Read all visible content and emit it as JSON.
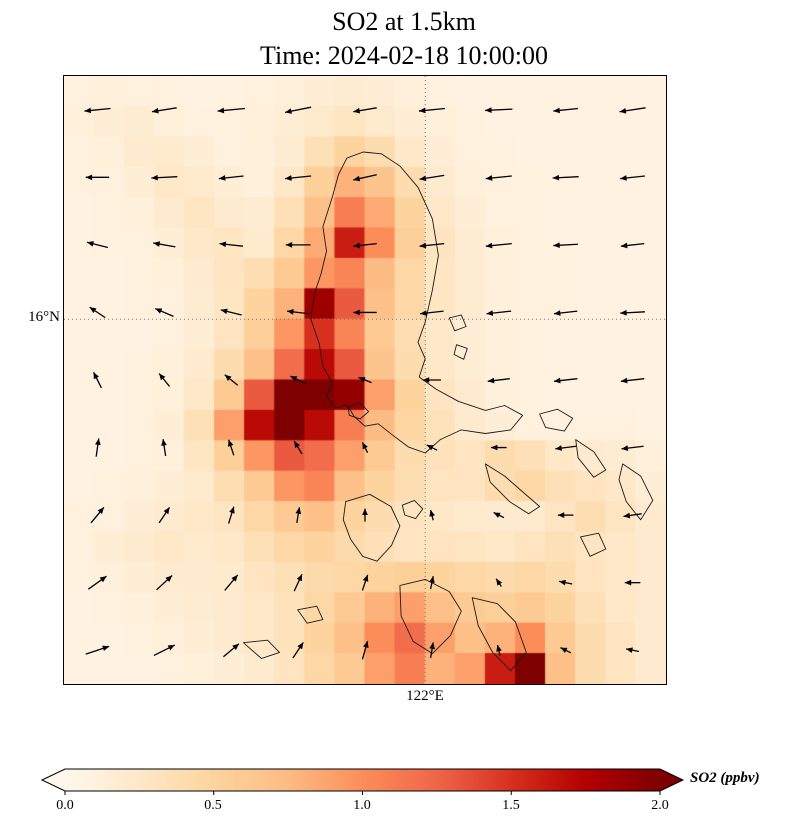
{
  "chart_data": {
    "type": "heatmap",
    "title": "SO2 at 1.5km",
    "subtitle": "Time: 2024-02-18 10:00:00",
    "variable": "SO2",
    "units": "ppbv",
    "level_km": 1.5,
    "time": "2024-02-18 10:00:00",
    "vmin": 0.0,
    "vmax": 2.0,
    "axes": {
      "ytick": {
        "label": "16°N",
        "frac": 0.4
      },
      "xtick": {
        "label": "122°E",
        "frac": 0.6
      },
      "grid": "dotted"
    },
    "colorbar": {
      "label": "SO2 (ppbv)",
      "orientation": "horizontal",
      "extend": "both",
      "ticks": [
        "0.0",
        "0.5",
        "1.0",
        "1.5",
        "2.0"
      ],
      "tick_values": [
        0.0,
        0.5,
        1.0,
        1.5,
        2.0
      ],
      "colormap_stops": [
        {
          "t": 0.0,
          "c": "#fff7ec"
        },
        {
          "t": 0.125,
          "c": "#fee8c8"
        },
        {
          "t": 0.25,
          "c": "#fdd49e"
        },
        {
          "t": 0.375,
          "c": "#fdbb84"
        },
        {
          "t": 0.5,
          "c": "#fc8d59"
        },
        {
          "t": 0.625,
          "c": "#ef6548"
        },
        {
          "t": 0.75,
          "c": "#d7301f"
        },
        {
          "t": 0.875,
          "c": "#b30000"
        },
        {
          "t": 1.0,
          "c": "#7f0000"
        }
      ]
    },
    "grid": [
      [
        0.1,
        0.12,
        0.1,
        0.1,
        0.08,
        0.08,
        0.1,
        0.12,
        0.15,
        0.18,
        0.15,
        0.12,
        0.1,
        0.08,
        0.08,
        0.08,
        0.08,
        0.08,
        0.08,
        0.08
      ],
      [
        0.12,
        0.15,
        0.18,
        0.12,
        0.1,
        0.1,
        0.12,
        0.15,
        0.22,
        0.28,
        0.22,
        0.15,
        0.12,
        0.1,
        0.08,
        0.08,
        0.08,
        0.08,
        0.08,
        0.08
      ],
      [
        0.1,
        0.12,
        0.2,
        0.22,
        0.15,
        0.1,
        0.12,
        0.18,
        0.35,
        0.5,
        0.4,
        0.25,
        0.15,
        0.1,
        0.1,
        0.08,
        0.08,
        0.08,
        0.08,
        0.08
      ],
      [
        0.1,
        0.1,
        0.15,
        0.25,
        0.22,
        0.15,
        0.12,
        0.25,
        0.55,
        0.8,
        0.65,
        0.4,
        0.2,
        0.12,
        0.1,
        0.1,
        0.08,
        0.08,
        0.08,
        0.08
      ],
      [
        0.08,
        0.1,
        0.12,
        0.2,
        0.28,
        0.2,
        0.18,
        0.35,
        0.7,
        1.1,
        0.85,
        0.5,
        0.25,
        0.15,
        0.1,
        0.1,
        0.08,
        0.08,
        0.08,
        0.08
      ],
      [
        0.08,
        0.1,
        0.1,
        0.15,
        0.25,
        0.28,
        0.22,
        0.45,
        0.85,
        1.6,
        1.0,
        0.55,
        0.3,
        0.18,
        0.12,
        0.1,
        0.08,
        0.08,
        0.08,
        0.08
      ],
      [
        0.08,
        0.08,
        0.1,
        0.12,
        0.2,
        0.3,
        0.38,
        0.6,
        0.95,
        1.05,
        0.75,
        0.45,
        0.28,
        0.18,
        0.12,
        0.1,
        0.1,
        0.08,
        0.08,
        0.08
      ],
      [
        0.08,
        0.08,
        0.1,
        0.1,
        0.18,
        0.28,
        0.5,
        0.8,
        1.85,
        1.3,
        0.7,
        0.45,
        0.28,
        0.18,
        0.12,
        0.1,
        0.1,
        0.08,
        0.08,
        0.08
      ],
      [
        0.08,
        0.08,
        0.08,
        0.1,
        0.15,
        0.3,
        0.55,
        0.95,
        1.5,
        1.05,
        0.6,
        0.38,
        0.25,
        0.15,
        0.12,
        0.1,
        0.08,
        0.08,
        0.08,
        0.08
      ],
      [
        0.08,
        0.08,
        0.1,
        0.12,
        0.2,
        0.4,
        0.7,
        1.2,
        1.7,
        1.3,
        0.65,
        0.4,
        0.25,
        0.15,
        0.12,
        0.1,
        0.08,
        0.08,
        0.08,
        0.08
      ],
      [
        0.08,
        0.08,
        0.1,
        0.12,
        0.25,
        0.6,
        1.3,
        2.0,
        2.1,
        1.9,
        0.9,
        0.5,
        0.3,
        0.2,
        0.12,
        0.1,
        0.08,
        0.08,
        0.08,
        0.08
      ],
      [
        0.08,
        0.08,
        0.1,
        0.15,
        0.35,
        0.9,
        1.7,
        2.0,
        1.7,
        1.1,
        0.75,
        0.48,
        0.32,
        0.2,
        0.15,
        0.1,
        0.1,
        0.1,
        0.1,
        0.08
      ],
      [
        0.08,
        0.08,
        0.1,
        0.12,
        0.28,
        0.55,
        0.95,
        1.3,
        1.2,
        0.9,
        0.6,
        0.4,
        0.32,
        0.3,
        0.4,
        0.35,
        0.25,
        0.2,
        0.18,
        0.12
      ],
      [
        0.08,
        0.1,
        0.12,
        0.15,
        0.22,
        0.38,
        0.6,
        0.95,
        1.05,
        0.7,
        0.5,
        0.38,
        0.3,
        0.3,
        0.4,
        0.45,
        0.35,
        0.3,
        0.25,
        0.15
      ],
      [
        0.1,
        0.1,
        0.15,
        0.2,
        0.25,
        0.3,
        0.45,
        0.6,
        0.7,
        0.5,
        0.4,
        0.3,
        0.25,
        0.22,
        0.2,
        0.22,
        0.3,
        0.38,
        0.3,
        0.2
      ],
      [
        0.1,
        0.15,
        0.2,
        0.25,
        0.22,
        0.25,
        0.35,
        0.45,
        0.5,
        0.42,
        0.35,
        0.3,
        0.3,
        0.28,
        0.25,
        0.3,
        0.35,
        0.3,
        0.25,
        0.2
      ],
      [
        0.1,
        0.12,
        0.15,
        0.2,
        0.2,
        0.22,
        0.3,
        0.35,
        0.42,
        0.45,
        0.5,
        0.55,
        0.5,
        0.45,
        0.42,
        0.45,
        0.4,
        0.3,
        0.25,
        0.2
      ],
      [
        0.08,
        0.1,
        0.12,
        0.15,
        0.18,
        0.2,
        0.25,
        0.32,
        0.45,
        0.6,
        0.8,
        0.9,
        0.7,
        0.6,
        0.55,
        0.6,
        0.5,
        0.35,
        0.25,
        0.2
      ],
      [
        0.08,
        0.08,
        0.1,
        0.12,
        0.15,
        0.2,
        0.25,
        0.32,
        0.5,
        0.7,
        1.0,
        1.2,
        0.9,
        0.7,
        0.8,
        1.0,
        0.6,
        0.4,
        0.3,
        0.2
      ],
      [
        0.08,
        0.08,
        0.08,
        0.1,
        0.12,
        0.15,
        0.2,
        0.3,
        0.45,
        0.6,
        0.9,
        1.1,
        0.8,
        0.9,
        1.6,
        2.0,
        0.7,
        0.4,
        0.3,
        0.2
      ]
    ],
    "quiver": {
      "u": [
        [
          -1.0,
          -0.95,
          -1.05,
          -1.0,
          -0.9,
          -1.0,
          -1.05,
          -0.95,
          -1.0
        ],
        [
          -0.9,
          -1.0,
          -0.95,
          -1.0,
          -0.9,
          -0.95,
          -1.0,
          -1.0,
          -0.95
        ],
        [
          -0.8,
          -0.85,
          -0.9,
          -0.95,
          -0.9,
          -0.95,
          -1.0,
          -0.95,
          -0.9
        ],
        [
          -0.6,
          -0.7,
          -0.8,
          -0.85,
          -0.9,
          -0.9,
          -0.95,
          -0.9,
          -0.95
        ],
        [
          -0.3,
          -0.4,
          -0.5,
          -0.6,
          -0.5,
          -0.7,
          -0.85,
          -0.9,
          -0.9
        ],
        [
          0.1,
          -0.1,
          -0.2,
          -0.3,
          -0.2,
          -0.4,
          -0.6,
          -0.8,
          -0.85
        ],
        [
          0.5,
          0.4,
          0.2,
          0.1,
          0.0,
          -0.1,
          -0.4,
          -0.6,
          -0.7
        ],
        [
          0.7,
          0.6,
          0.5,
          0.3,
          0.2,
          0.1,
          -0.2,
          -0.5,
          -0.6
        ],
        [
          0.9,
          0.8,
          0.6,
          0.4,
          0.2,
          0.1,
          -0.1,
          -0.4,
          -0.5
        ]
      ],
      "v": [
        [
          -0.1,
          -0.15,
          -0.1,
          -0.2,
          -0.15,
          -0.1,
          -0.05,
          -0.1,
          -0.15
        ],
        [
          0.0,
          -0.05,
          -0.1,
          -0.1,
          -0.2,
          -0.15,
          -0.1,
          -0.05,
          -0.1
        ],
        [
          0.2,
          0.15,
          0.1,
          0.0,
          -0.1,
          -0.1,
          -0.1,
          -0.05,
          -0.1
        ],
        [
          0.4,
          0.3,
          0.2,
          0.1,
          0.0,
          -0.1,
          -0.1,
          -0.1,
          -0.05
        ],
        [
          0.6,
          0.5,
          0.4,
          0.3,
          0.2,
          0.0,
          -0.1,
          -0.1,
          -0.1
        ],
        [
          0.7,
          0.65,
          0.6,
          0.5,
          0.4,
          0.2,
          0.0,
          -0.1,
          -0.1
        ],
        [
          0.6,
          0.6,
          0.65,
          0.6,
          0.5,
          0.4,
          0.2,
          0.0,
          -0.1
        ],
        [
          0.5,
          0.55,
          0.6,
          0.65,
          0.6,
          0.5,
          0.3,
          0.1,
          0.0
        ],
        [
          0.3,
          0.4,
          0.5,
          0.6,
          0.7,
          0.6,
          0.4,
          0.2,
          0.1
        ]
      ]
    },
    "coastlines": [
      [
        [
          0.47,
          0.135
        ],
        [
          0.497,
          0.125
        ],
        [
          0.527,
          0.128
        ],
        [
          0.558,
          0.148
        ],
        [
          0.588,
          0.183
        ],
        [
          0.612,
          0.235
        ],
        [
          0.622,
          0.295
        ],
        [
          0.612,
          0.352
        ],
        [
          0.6,
          0.405
        ],
        [
          0.588,
          0.438
        ],
        [
          0.6,
          0.465
        ],
        [
          0.59,
          0.495
        ],
        [
          0.618,
          0.515
        ],
        [
          0.655,
          0.535
        ],
        [
          0.7,
          0.55
        ],
        [
          0.732,
          0.542
        ],
        [
          0.762,
          0.558
        ],
        [
          0.742,
          0.582
        ],
        [
          0.7,
          0.588
        ],
        [
          0.66,
          0.582
        ],
        [
          0.625,
          0.598
        ],
        [
          0.6,
          0.62
        ],
        [
          0.572,
          0.61
        ],
        [
          0.545,
          0.59
        ],
        [
          0.522,
          0.572
        ],
        [
          0.5,
          0.576
        ],
        [
          0.482,
          0.56
        ],
        [
          0.47,
          0.54
        ],
        [
          0.452,
          0.546
        ],
        [
          0.436,
          0.526
        ],
        [
          0.446,
          0.505
        ],
        [
          0.43,
          0.478
        ],
        [
          0.424,
          0.44
        ],
        [
          0.41,
          0.4
        ],
        [
          0.416,
          0.358
        ],
        [
          0.427,
          0.325
        ],
        [
          0.436,
          0.288
        ],
        [
          0.43,
          0.248
        ],
        [
          0.446,
          0.198
        ],
        [
          0.456,
          0.162
        ]
      ],
      [
        [
          0.472,
          0.544
        ],
        [
          0.492,
          0.538
        ],
        [
          0.506,
          0.552
        ],
        [
          0.492,
          0.564
        ],
        [
          0.474,
          0.558
        ]
      ],
      [
        [
          0.468,
          0.7
        ],
        [
          0.508,
          0.688
        ],
        [
          0.543,
          0.708
        ],
        [
          0.558,
          0.74
        ],
        [
          0.544,
          0.772
        ],
        [
          0.52,
          0.798
        ],
        [
          0.496,
          0.79
        ],
        [
          0.476,
          0.762
        ],
        [
          0.464,
          0.73
        ]
      ],
      [
        [
          0.562,
          0.706
        ],
        [
          0.582,
          0.698
        ],
        [
          0.596,
          0.712
        ],
        [
          0.584,
          0.728
        ],
        [
          0.566,
          0.722
        ]
      ],
      [
        [
          0.64,
          0.398
        ],
        [
          0.66,
          0.393
        ],
        [
          0.668,
          0.412
        ],
        [
          0.649,
          0.419
        ]
      ],
      [
        [
          0.652,
          0.442
        ],
        [
          0.67,
          0.448
        ],
        [
          0.664,
          0.466
        ],
        [
          0.648,
          0.458
        ]
      ],
      [
        [
          0.79,
          0.556
        ],
        [
          0.82,
          0.548
        ],
        [
          0.845,
          0.563
        ],
        [
          0.831,
          0.584
        ],
        [
          0.8,
          0.578
        ]
      ],
      [
        [
          0.7,
          0.638
        ],
        [
          0.732,
          0.658
        ],
        [
          0.762,
          0.684
        ],
        [
          0.79,
          0.708
        ],
        [
          0.772,
          0.72
        ],
        [
          0.74,
          0.7
        ],
        [
          0.708,
          0.668
        ]
      ],
      [
        [
          0.85,
          0.598
        ],
        [
          0.88,
          0.618
        ],
        [
          0.9,
          0.648
        ],
        [
          0.88,
          0.66
        ],
        [
          0.854,
          0.628
        ]
      ],
      [
        [
          0.928,
          0.638
        ],
        [
          0.958,
          0.658
        ],
        [
          0.978,
          0.698
        ],
        [
          0.958,
          0.73
        ],
        [
          0.934,
          0.7
        ],
        [
          0.922,
          0.664
        ]
      ],
      [
        [
          0.858,
          0.758
        ],
        [
          0.888,
          0.752
        ],
        [
          0.9,
          0.778
        ],
        [
          0.874,
          0.79
        ]
      ],
      [
        [
          0.558,
          0.838
        ],
        [
          0.6,
          0.828
        ],
        [
          0.64,
          0.848
        ],
        [
          0.66,
          0.88
        ],
        [
          0.642,
          0.92
        ],
        [
          0.612,
          0.95
        ],
        [
          0.58,
          0.93
        ],
        [
          0.56,
          0.888
        ]
      ],
      [
        [
          0.678,
          0.858
        ],
        [
          0.72,
          0.868
        ],
        [
          0.75,
          0.898
        ],
        [
          0.768,
          0.948
        ],
        [
          0.742,
          0.978
        ],
        [
          0.712,
          0.948
        ],
        [
          0.688,
          0.904
        ]
      ],
      [
        [
          0.388,
          0.878
        ],
        [
          0.42,
          0.872
        ],
        [
          0.43,
          0.894
        ],
        [
          0.404,
          0.9
        ]
      ],
      [
        [
          0.298,
          0.932
        ],
        [
          0.338,
          0.928
        ],
        [
          0.358,
          0.948
        ],
        [
          0.328,
          0.958
        ]
      ]
    ]
  }
}
